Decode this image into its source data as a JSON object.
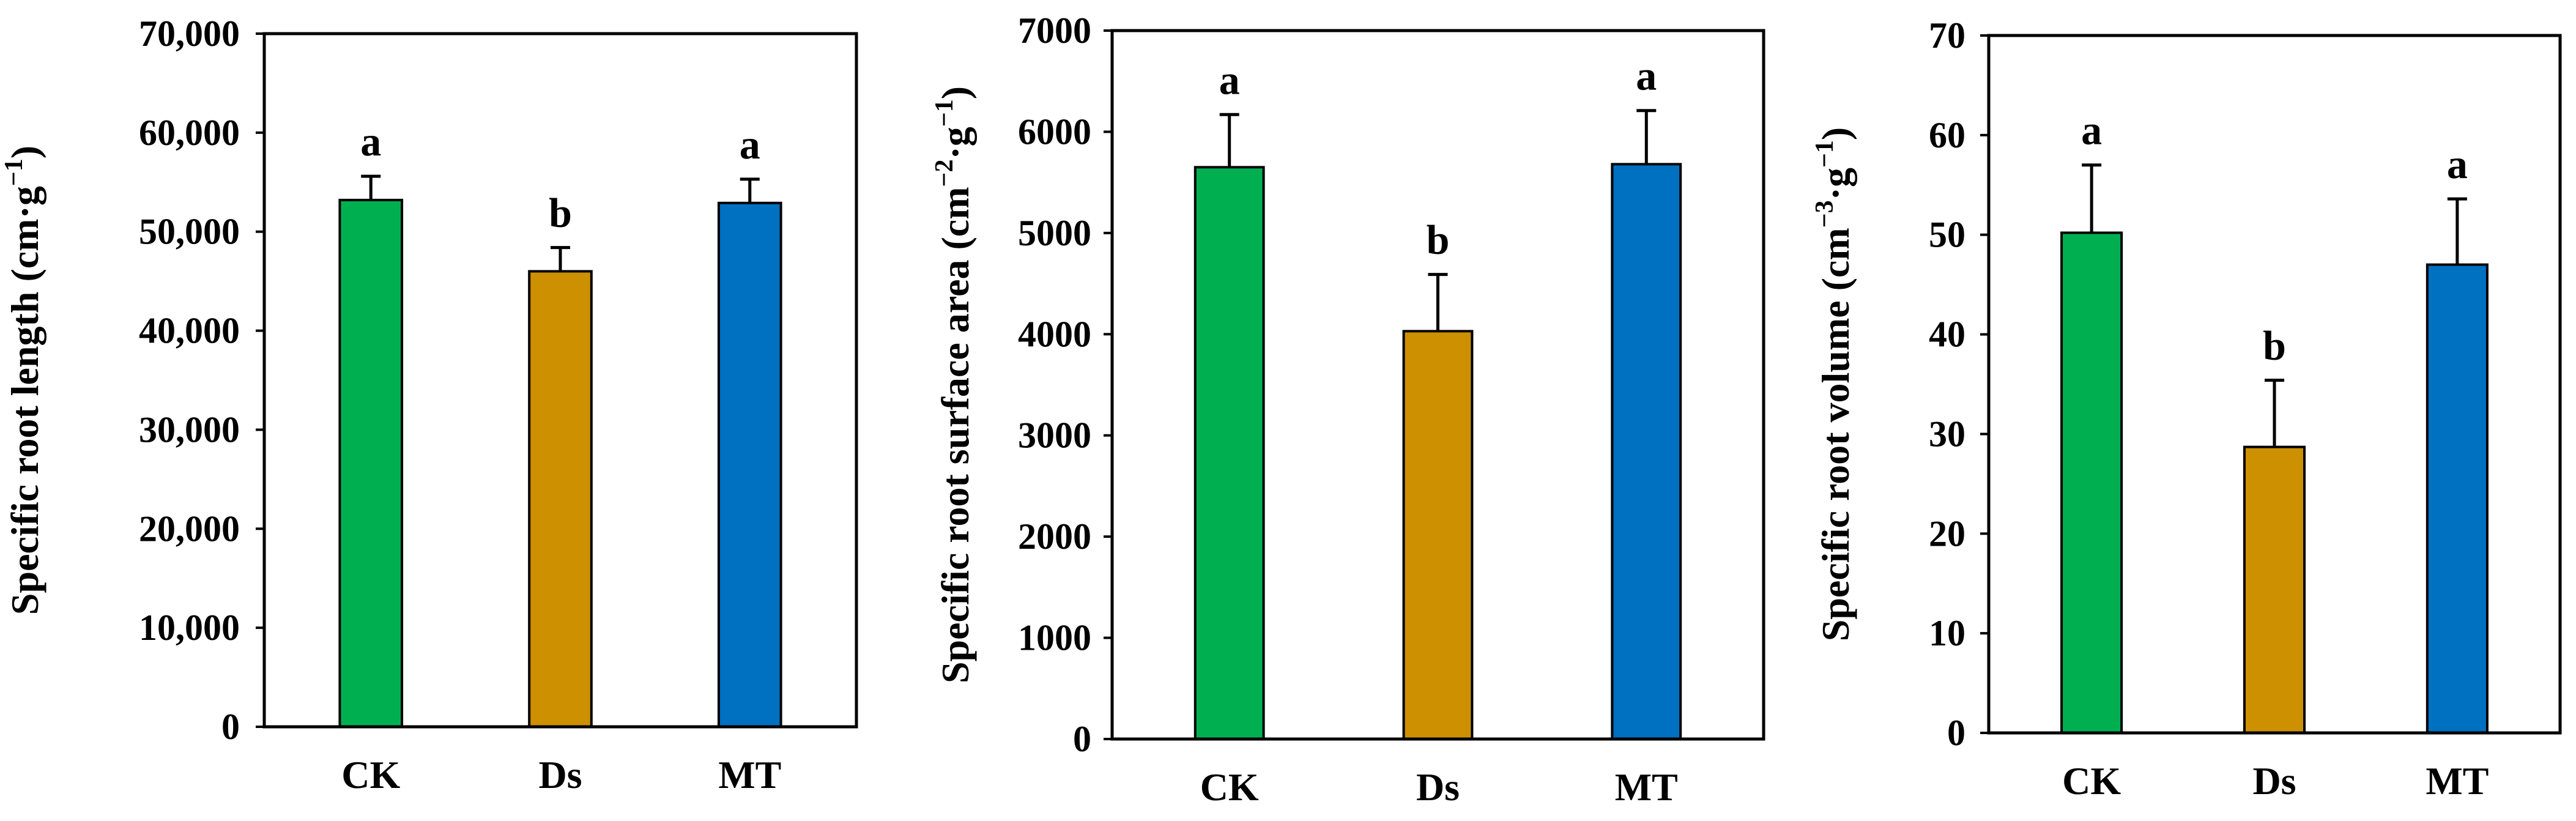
{
  "chart_data": [
    {
      "type": "bar",
      "categories": [
        "CK",
        "Ds",
        "MT"
      ],
      "values": [
        53200,
        46000,
        52900
      ],
      "errors": [
        2400,
        2400,
        2400
      ],
      "significance": [
        "a",
        "b",
        "a"
      ],
      "bar_colors": [
        "#00B050",
        "#CC9000",
        "#0070C0"
      ],
      "ylabel_main": "Specific root length (cm·g",
      "ylabel_sup": "−1",
      "ylabel_end": ")",
      "ylim": [
        0,
        70000
      ],
      "yticks": [
        0,
        10000,
        20000,
        30000,
        40000,
        50000,
        60000,
        70000
      ],
      "ytick_labels": [
        "0",
        "10,000",
        "20,000",
        "30,000",
        "40,000",
        "50,000",
        "60,000",
        "70,000"
      ],
      "grid": false
    },
    {
      "type": "bar",
      "categories": [
        "CK",
        "Ds",
        "MT"
      ],
      "values": [
        5650,
        4030,
        5680
      ],
      "errors": [
        520,
        560,
        530
      ],
      "significance": [
        "a",
        "b",
        "a"
      ],
      "bar_colors": [
        "#00B050",
        "#CC9000",
        "#0070C0"
      ],
      "ylabel_main": "Specific root surface area (cm",
      "ylabel_sup": "−2",
      "ylabel_mid": "·g",
      "ylabel_sup2": "−1",
      "ylabel_end": ")",
      "ylim": [
        0,
        7000
      ],
      "yticks": [
        0,
        1000,
        2000,
        3000,
        4000,
        5000,
        6000,
        7000
      ],
      "ytick_labels": [
        "0",
        "1000",
        "2000",
        "3000",
        "4000",
        "5000",
        "6000",
        "7000"
      ],
      "grid": false
    },
    {
      "type": "bar",
      "categories": [
        "CK",
        "Ds",
        "MT"
      ],
      "values": [
        50.2,
        28.7,
        47.0
      ],
      "errors": [
        6.8,
        6.7,
        6.6
      ],
      "significance": [
        "a",
        "b",
        "a"
      ],
      "bar_colors": [
        "#00B050",
        "#CC9000",
        "#0070C0"
      ],
      "ylabel_main": "Specific root volume (cm",
      "ylabel_sup": "−3",
      "ylabel_mid": "·g",
      "ylabel_sup2": "−1",
      "ylabel_end": ")",
      "ylim": [
        0,
        70
      ],
      "yticks": [
        0,
        10,
        20,
        30,
        40,
        50,
        60,
        70
      ],
      "ytick_labels": [
        "0",
        "10",
        "20",
        "30",
        "40",
        "50",
        "60",
        "70"
      ],
      "grid": false
    }
  ]
}
